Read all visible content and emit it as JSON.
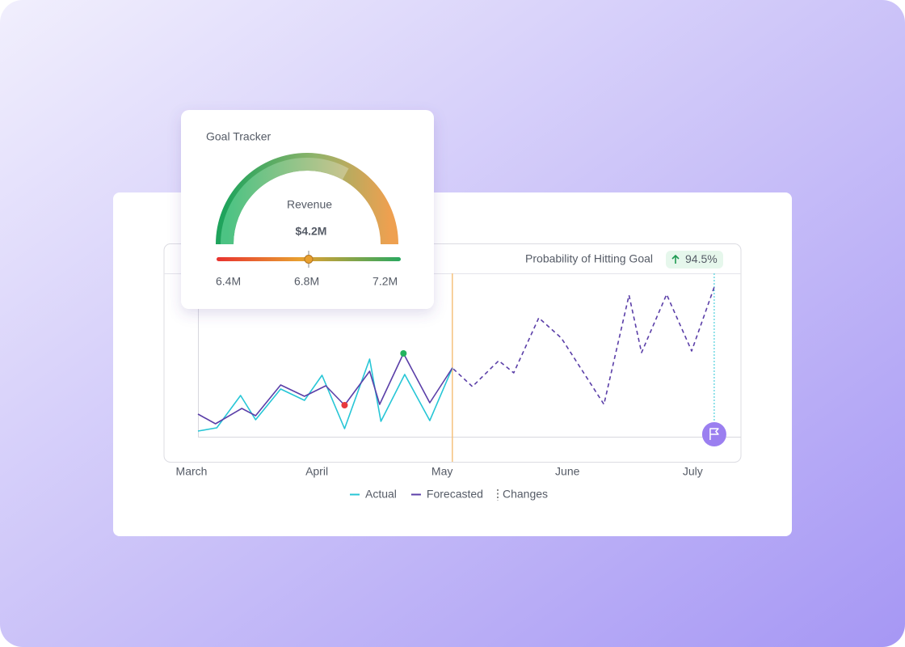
{
  "gauge_card": {
    "title": "Goal Tracker",
    "metric": "Revenue",
    "value": "$4.2M",
    "fill": 66,
    "fill_lim": [
      0,
      100
    ],
    "scale": {
      "lim": [
        6.34,
        7.28
      ],
      "ticks": [
        {
          "value": 6.4,
          "label": "6.4M"
        },
        {
          "value": 6.8,
          "label": "6.8M"
        },
        {
          "value": 7.2,
          "label": "7.2M"
        }
      ],
      "marker": 6.81
    }
  },
  "chart_data": {
    "type": "line",
    "header": "Probability of Hitting Goal",
    "badge": "94.5%",
    "xlim": [
      3,
      7.14
    ],
    "xticks": [
      {
        "value": 3,
        "label": "March"
      },
      {
        "value": 4,
        "label": "April"
      },
      {
        "value": 5,
        "label": "May"
      },
      {
        "value": 6,
        "label": "June"
      },
      {
        "value": 7,
        "label": "July"
      }
    ],
    "ylim": [
      0,
      100
    ],
    "current_x": 5.03,
    "series": [
      {
        "name": "Actual",
        "color": "#27c6d6",
        "x": [
          3.0,
          3.15,
          3.34,
          3.46,
          3.66,
          3.85,
          3.99,
          4.17,
          4.37,
          4.46,
          4.65,
          4.85,
          5.03
        ],
        "values": [
          3.5,
          5.5,
          25.5,
          10.5,
          29.5,
          22.5,
          38,
          5,
          48,
          9.5,
          38.5,
          10,
          42.5
        ]
      },
      {
        "name": "Forecasted",
        "color": "#5b3fa8",
        "x": [
          3.0,
          3.14,
          3.35,
          3.46,
          3.66,
          3.85,
          4.02,
          4.17,
          4.37,
          4.45,
          4.64,
          4.85,
          5.03,
          5.19,
          5.4,
          5.52,
          5.72,
          5.9,
          6.24,
          6.44,
          6.54,
          6.74,
          6.94,
          7.12
        ],
        "values": [
          14,
          8,
          17.5,
          13,
          32,
          25,
          31.5,
          19.5,
          40.5,
          20,
          51.5,
          21,
          42.5,
          31,
          47,
          39.5,
          73.5,
          61,
          20,
          87.5,
          52,
          88,
          53,
          92.5
        ]
      }
    ],
    "markers": [
      {
        "series": 1,
        "index": 7,
        "color": "#e8383d"
      },
      {
        "series": 1,
        "index": 10,
        "color": "#22b35e"
      }
    ],
    "changes": {
      "name": "Changes",
      "x": 7.12,
      "color": "#27c6d6"
    }
  }
}
